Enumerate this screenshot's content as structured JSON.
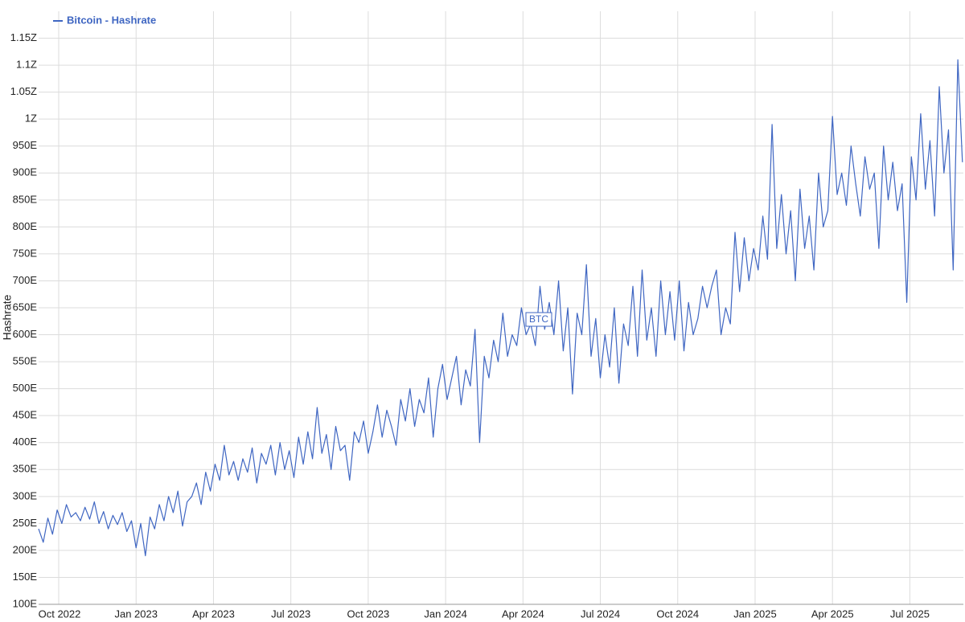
{
  "chart_data": {
    "type": "line",
    "y_label": "Hashrate",
    "annotation": "BTC",
    "legend": "top-left",
    "grid": true,
    "xlim": [
      2022.685,
      2025.673
    ],
    "ylim": [
      100,
      1200
    ],
    "xticks": [
      {
        "value": 2022.75,
        "label": "Oct 2022"
      },
      {
        "value": 2023.0,
        "label": "Jan 2023"
      },
      {
        "value": 2023.25,
        "label": "Apr 2023"
      },
      {
        "value": 2023.5,
        "label": "Jul 2023"
      },
      {
        "value": 2023.75,
        "label": "Oct 2023"
      },
      {
        "value": 2024.0,
        "label": "Jan 2024"
      },
      {
        "value": 2024.25,
        "label": "Apr 2024"
      },
      {
        "value": 2024.5,
        "label": "Jul 2024"
      },
      {
        "value": 2024.75,
        "label": "Oct 2024"
      },
      {
        "value": 2025.0,
        "label": "Jan 2025"
      },
      {
        "value": 2025.25,
        "label": "Apr 2025"
      },
      {
        "value": 2025.5,
        "label": "Jul 2025"
      }
    ],
    "yticks": [
      {
        "value": 100,
        "label": "100E"
      },
      {
        "value": 150,
        "label": "150E"
      },
      {
        "value": 200,
        "label": "200E"
      },
      {
        "value": 250,
        "label": "250E"
      },
      {
        "value": 300,
        "label": "300E"
      },
      {
        "value": 350,
        "label": "350E"
      },
      {
        "value": 400,
        "label": "400E"
      },
      {
        "value": 450,
        "label": "450E"
      },
      {
        "value": 500,
        "label": "500E"
      },
      {
        "value": 550,
        "label": "550E"
      },
      {
        "value": 600,
        "label": "600E"
      },
      {
        "value": 650,
        "label": "650E"
      },
      {
        "value": 700,
        "label": "700E"
      },
      {
        "value": 750,
        "label": "750E"
      },
      {
        "value": 800,
        "label": "800E"
      },
      {
        "value": 850,
        "label": "850E"
      },
      {
        "value": 900,
        "label": "900E"
      },
      {
        "value": 950,
        "label": "950E"
      },
      {
        "value": 1000,
        "label": "1Z"
      },
      {
        "value": 1050,
        "label": "1.05Z"
      },
      {
        "value": 1100,
        "label": "1.1Z"
      },
      {
        "value": 1150,
        "label": "1.15Z"
      }
    ],
    "x": [
      2022.685,
      2022.7,
      2022.715,
      2022.73,
      2022.745,
      2022.76,
      2022.775,
      2022.79,
      2022.805,
      2022.82,
      2022.835,
      2022.85,
      2022.865,
      2022.88,
      2022.895,
      2022.91,
      2022.925,
      2022.94,
      2022.955,
      2022.97,
      2022.985,
      2023.0,
      2023.015,
      2023.03,
      2023.045,
      2023.06,
      2023.075,
      2023.09,
      2023.105,
      2023.12,
      2023.135,
      2023.15,
      2023.165,
      2023.18,
      2023.195,
      2023.21,
      2023.225,
      2023.24,
      2023.255,
      2023.27,
      2023.285,
      2023.3,
      2023.315,
      2023.33,
      2023.345,
      2023.36,
      2023.375,
      2023.39,
      2023.405,
      2023.42,
      2023.435,
      2023.45,
      2023.465,
      2023.48,
      2023.495,
      2023.51,
      2023.525,
      2023.54,
      2023.555,
      2023.57,
      2023.585,
      2023.6,
      2023.615,
      2023.63,
      2023.645,
      2023.66,
      2023.675,
      2023.69,
      2023.705,
      2023.72,
      2023.735,
      2023.75,
      2023.765,
      2023.78,
      2023.795,
      2023.81,
      2023.825,
      2023.84,
      2023.855,
      2023.87,
      2023.885,
      2023.9,
      2023.915,
      2023.93,
      2023.945,
      2023.96,
      2023.975,
      2023.99,
      2024.005,
      2024.02,
      2024.035,
      2024.05,
      2024.065,
      2024.08,
      2024.095,
      2024.11,
      2024.125,
      2024.14,
      2024.155,
      2024.17,
      2024.185,
      2024.2,
      2024.215,
      2024.23,
      2024.245,
      2024.26,
      2024.275,
      2024.29,
      2024.305,
      2024.32,
      2024.335,
      2024.35,
      2024.365,
      2024.38,
      2024.395,
      2024.41,
      2024.425,
      2024.44,
      2024.455,
      2024.47,
      2024.485,
      2024.5,
      2024.515,
      2024.53,
      2024.545,
      2024.56,
      2024.575,
      2024.59,
      2024.605,
      2024.62,
      2024.635,
      2024.65,
      2024.665,
      2024.68,
      2024.695,
      2024.71,
      2024.725,
      2024.74,
      2024.755,
      2024.77,
      2024.785,
      2024.8,
      2024.815,
      2024.83,
      2024.845,
      2024.86,
      2024.875,
      2024.89,
      2024.905,
      2024.92,
      2024.935,
      2024.95,
      2024.965,
      2024.98,
      2024.995,
      2025.01,
      2025.025,
      2025.04,
      2025.055,
      2025.07,
      2025.085,
      2025.1,
      2025.115,
      2025.13,
      2025.145,
      2025.16,
      2025.175,
      2025.19,
      2025.205,
      2025.22,
      2025.235,
      2025.25,
      2025.265,
      2025.28,
      2025.295,
      2025.31,
      2025.325,
      2025.34,
      2025.355,
      2025.37,
      2025.385,
      2025.4,
      2025.415,
      2025.43,
      2025.445,
      2025.46,
      2025.475,
      2025.49,
      2025.505,
      2025.52,
      2025.535,
      2025.55,
      2025.565,
      2025.58,
      2025.595,
      2025.61,
      2025.625,
      2025.64,
      2025.655,
      2025.67
    ],
    "series": [
      {
        "name": "Bitcoin - Hashrate",
        "color": "#3f66c2",
        "values": [
          240,
          215,
          260,
          230,
          275,
          250,
          285,
          262,
          270,
          255,
          280,
          258,
          290,
          250,
          272,
          240,
          265,
          248,
          270,
          235,
          255,
          205,
          250,
          190,
          262,
          240,
          285,
          255,
          300,
          270,
          310,
          245,
          290,
          300,
          325,
          285,
          345,
          310,
          360,
          330,
          395,
          340,
          365,
          330,
          370,
          345,
          390,
          325,
          380,
          360,
          395,
          340,
          400,
          350,
          385,
          335,
          410,
          360,
          420,
          370,
          465,
          380,
          415,
          350,
          430,
          385,
          395,
          330,
          420,
          400,
          440,
          380,
          420,
          470,
          410,
          460,
          430,
          395,
          480,
          440,
          500,
          430,
          480,
          455,
          520,
          410,
          500,
          545,
          480,
          520,
          560,
          470,
          535,
          505,
          610,
          400,
          560,
          520,
          590,
          550,
          640,
          560,
          600,
          580,
          650,
          600,
          620,
          580,
          690,
          610,
          660,
          600,
          700,
          570,
          650,
          490,
          640,
          600,
          730,
          560,
          630,
          520,
          600,
          540,
          650,
          510,
          620,
          580,
          690,
          560,
          720,
          590,
          650,
          560,
          700,
          600,
          680,
          590,
          700,
          570,
          660,
          600,
          630,
          690,
          650,
          690,
          720,
          600,
          650,
          620,
          790,
          680,
          780,
          700,
          760,
          720,
          820,
          740,
          990,
          760,
          860,
          750,
          830,
          700,
          870,
          760,
          820,
          720,
          900,
          800,
          830,
          1005,
          860,
          900,
          840,
          950,
          880,
          820,
          930,
          870,
          900,
          760,
          950,
          850,
          920,
          830,
          880,
          660,
          930,
          850,
          1010,
          870,
          960,
          820,
          1060,
          900,
          980,
          720,
          1110,
          920
        ]
      }
    ]
  }
}
